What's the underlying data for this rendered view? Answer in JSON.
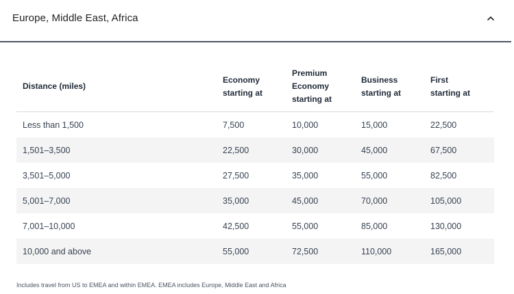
{
  "accordion": {
    "title": "Europe, Middle East, Africa",
    "expanded": true,
    "toggle_icon": "chevron-up-icon"
  },
  "table": {
    "headers": [
      [
        "Distance (miles)"
      ],
      [
        "Economy",
        "starting at"
      ],
      [
        "Premium",
        "Economy",
        "starting at"
      ],
      [
        "Business",
        "starting at"
      ],
      [
        "First",
        "starting at"
      ]
    ],
    "rows": [
      [
        "Less than 1,500",
        "7,500",
        "10,000",
        "15,000",
        "22,500"
      ],
      [
        "1,501–3,500",
        "22,500",
        "30,000",
        "45,000",
        "67,500"
      ],
      [
        "3,501–5,000",
        "27,500",
        "35,000",
        "55,000",
        "82,500"
      ],
      [
        "5,001–7,000",
        "35,000",
        "45,000",
        "70,000",
        "105,000"
      ],
      [
        "7,001–10,000",
        "42,500",
        "55,000",
        "85,000",
        "130,000"
      ],
      [
        "10,000 and above",
        "55,000",
        "72,500",
        "110,000",
        "165,000"
      ]
    ]
  },
  "footnote": "Includes travel from US to EMEA and within EMEA. EMEA includes Europe, Middle East and Africa",
  "colors": {
    "header_rule": "#4a5563",
    "zebra_row": "#f4f4f4",
    "text": "#1f2937"
  }
}
